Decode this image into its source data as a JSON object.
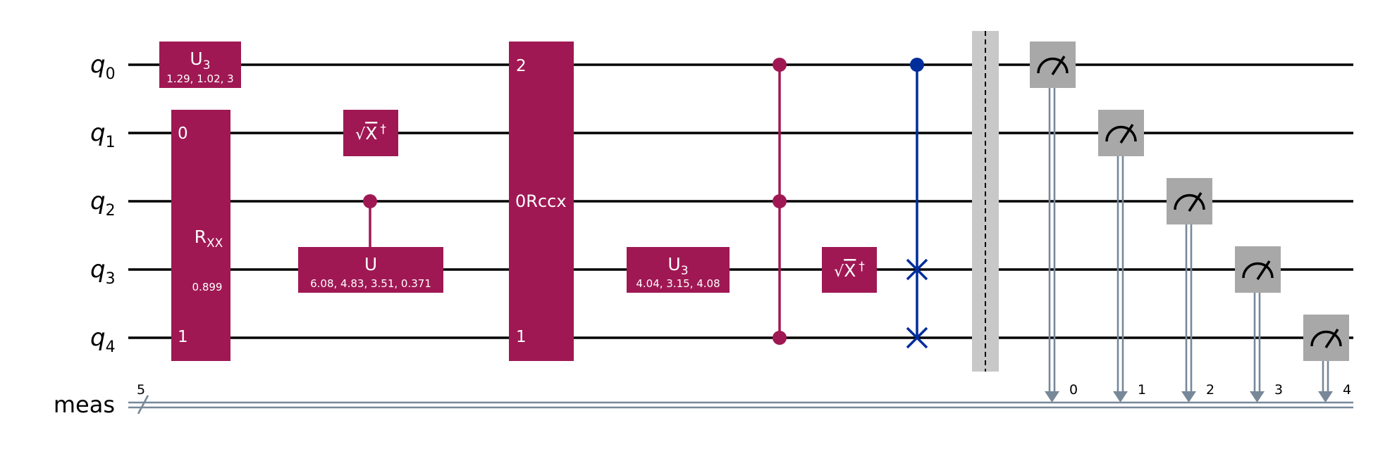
{
  "qubits": [
    {
      "base": "q",
      "sub": "0"
    },
    {
      "base": "q",
      "sub": "1"
    },
    {
      "base": "q",
      "sub": "2"
    },
    {
      "base": "q",
      "sub": "3"
    },
    {
      "base": "q",
      "sub": "4"
    }
  ],
  "classical": {
    "label": "meas",
    "size": "5",
    "bits": [
      "0",
      "1",
      "2",
      "3",
      "4"
    ]
  },
  "colors": {
    "gate": "#9F1853",
    "swap": "#002D9C",
    "measure": "#A8A8A8",
    "barrier": "#C8C8C8",
    "classical": "#778899"
  },
  "gates": {
    "u3_q0": {
      "name": "U",
      "sub": "3",
      "params": "1.29, 1.02, 3"
    },
    "rxx": {
      "name": "R",
      "sub": "XX",
      "param": "0.899",
      "top_index": "0",
      "bottom_index": "1"
    },
    "sxdg_q1": {
      "radical": "√",
      "name": "X",
      "dagger": "†"
    },
    "cu": {
      "name": "U",
      "params": "6.08, 4.83, 3.51, 0.371"
    },
    "rccx": {
      "name": "0Rccx",
      "top_index": "2",
      "bottom_index": "1"
    },
    "u3_q3": {
      "name": "U",
      "sub": "3",
      "params": "4.04, 3.15, 4.08"
    },
    "sxdg_q3": {
      "radical": "√",
      "name": "X",
      "dagger": "†"
    }
  }
}
